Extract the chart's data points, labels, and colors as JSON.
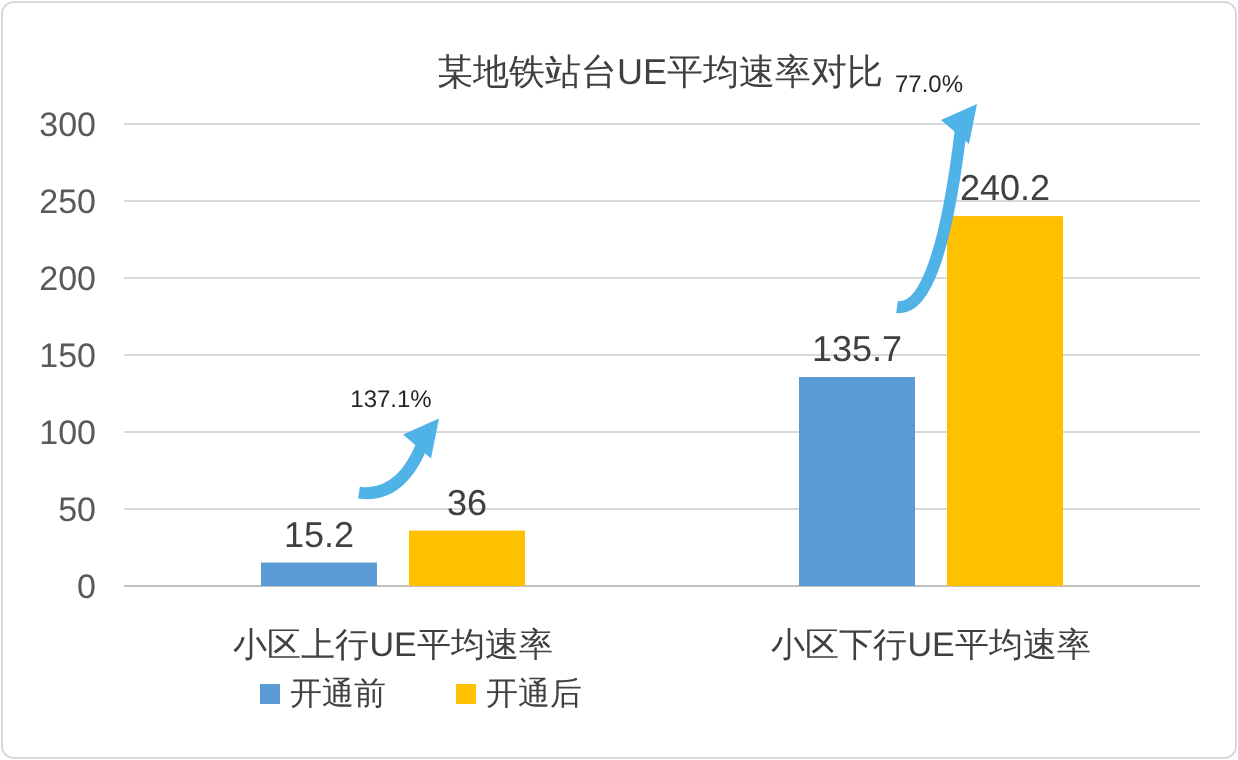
{
  "chart_data": {
    "type": "bar",
    "title": "某地铁站台UE平均速率对比",
    "categories": [
      "小区上行UE平均速率",
      "小区下行UE平均速率"
    ],
    "series": [
      {
        "name": "开通前",
        "color": "#5b9bd5",
        "values": [
          15.2,
          135.7
        ]
      },
      {
        "name": "开通后",
        "color": "#ffc000",
        "values": [
          36,
          240.2
        ]
      }
    ],
    "ylim": [
      0,
      300
    ],
    "yticks": [
      0,
      50,
      100,
      150,
      200,
      250,
      300
    ],
    "grid": "y",
    "data_labels": true,
    "legend": "bottom",
    "annotations": [
      "137.1%",
      "77.0%"
    ]
  }
}
